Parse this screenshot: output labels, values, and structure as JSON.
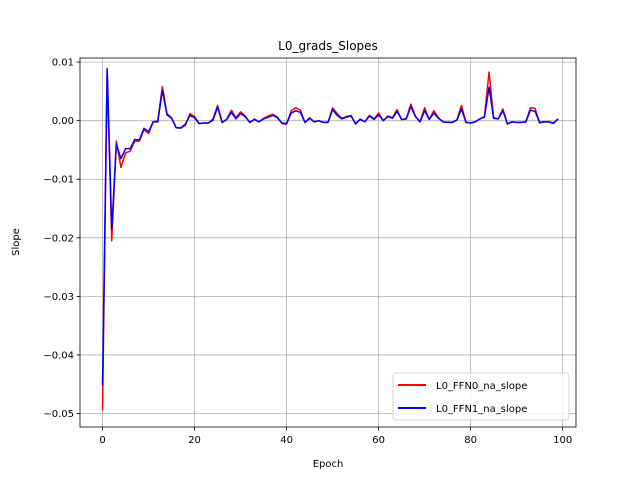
{
  "chart_data": {
    "type": "line",
    "title": "L0_grads_Slopes",
    "xlabel": "Epoch",
    "ylabel": "Slope",
    "xlim": [
      -4.9,
      102.9
    ],
    "ylim": [
      -0.0523,
      0.0107
    ],
    "xticks": [
      0,
      20,
      40,
      60,
      80,
      100
    ],
    "yticks": [
      -0.05,
      -0.04,
      -0.03,
      -0.02,
      -0.01,
      0.0,
      0.01
    ],
    "xtick_labels": [
      "0",
      "20",
      "40",
      "60",
      "80",
      "100"
    ],
    "ytick_labels": [
      "−0.05",
      "−0.04",
      "−0.03",
      "−0.02",
      "−0.01",
      "0.00",
      "0.01"
    ],
    "grid": true,
    "legend_position": "lower-right",
    "series": [
      {
        "name": "L0_FFN0_na_slope",
        "color": "#ff0000",
        "y": [
          -0.0495,
          0.0085,
          -0.0205,
          -0.0035,
          -0.008,
          -0.0055,
          -0.0052,
          -0.0035,
          -0.0035,
          -0.0015,
          -0.0022,
          -0.0002,
          0.0,
          0.0058,
          0.0012,
          0.0005,
          -0.0012,
          -0.0013,
          -0.0008,
          0.0012,
          0.0007,
          -0.0005,
          -0.0004,
          -0.0004,
          0.0003,
          0.0026,
          -0.0003,
          0.0003,
          0.0018,
          0.0005,
          0.0015,
          0.0008,
          -0.0003,
          0.0003,
          -0.0002,
          0.0004,
          0.0008,
          0.0011,
          0.0006,
          -0.0005,
          -0.0006,
          0.0017,
          0.0022,
          0.0018,
          -0.0003,
          0.0005,
          -0.0002,
          0.0,
          -0.0003,
          -0.0003,
          0.0022,
          0.0012,
          0.0004,
          0.0007,
          0.0009,
          -0.0006,
          0.0003,
          -0.0002,
          0.0009,
          0.0003,
          0.0013,
          0.0,
          0.0008,
          0.0005,
          0.0019,
          0.0002,
          0.0003,
          0.0028,
          0.0008,
          -0.0002,
          0.0022,
          0.0002,
          0.0017,
          0.0005,
          -0.0002,
          -0.0003,
          -0.0003,
          0.0001,
          0.0026,
          -0.0003,
          -0.0004,
          -0.0002,
          0.0003,
          0.0007,
          0.0083,
          0.0005,
          0.0003,
          0.002,
          -0.0006,
          -0.0002,
          -0.0003,
          -0.0003,
          -0.0002,
          0.0022,
          0.0021,
          -0.0004,
          -0.0002,
          -0.0002,
          -0.0005,
          0.0003
        ]
      },
      {
        "name": "L0_FFN1_na_slope",
        "color": "#0000ff",
        "y": [
          -0.0452,
          0.0089,
          -0.0185,
          -0.004,
          -0.0065,
          -0.0048,
          -0.0048,
          -0.0032,
          -0.0033,
          -0.0013,
          -0.0019,
          -0.0002,
          -0.0002,
          0.0052,
          0.001,
          0.0004,
          -0.0012,
          -0.0012,
          -0.0006,
          0.0009,
          0.0005,
          -0.0005,
          -0.0004,
          -0.0004,
          0.0001,
          0.0023,
          -0.0003,
          0.0002,
          0.0014,
          0.0003,
          0.0012,
          0.0007,
          -0.0003,
          0.0002,
          -0.0002,
          0.0003,
          0.0006,
          0.0009,
          0.0005,
          -0.0004,
          -0.0005,
          0.0013,
          0.0017,
          0.0014,
          -0.0003,
          0.0004,
          -0.0002,
          0.0,
          -0.0003,
          -0.0003,
          0.0019,
          0.0009,
          0.0003,
          0.0006,
          0.0008,
          -0.0005,
          0.0002,
          -0.0002,
          0.0008,
          0.0002,
          0.001,
          0.0,
          0.0007,
          0.0004,
          0.0016,
          0.0002,
          0.0003,
          0.0024,
          0.0007,
          -0.0002,
          0.0017,
          0.0002,
          0.0013,
          0.0004,
          -0.0002,
          -0.0003,
          -0.0003,
          0.0001,
          0.002,
          -0.0003,
          -0.0004,
          -0.0002,
          0.0003,
          0.0006,
          0.0057,
          0.0004,
          0.0003,
          0.0017,
          -0.0005,
          -0.0002,
          -0.0003,
          -0.0003,
          -0.0002,
          0.0018,
          0.0016,
          -0.0003,
          -0.0002,
          -0.0002,
          -0.0004,
          0.0003
        ]
      }
    ]
  }
}
